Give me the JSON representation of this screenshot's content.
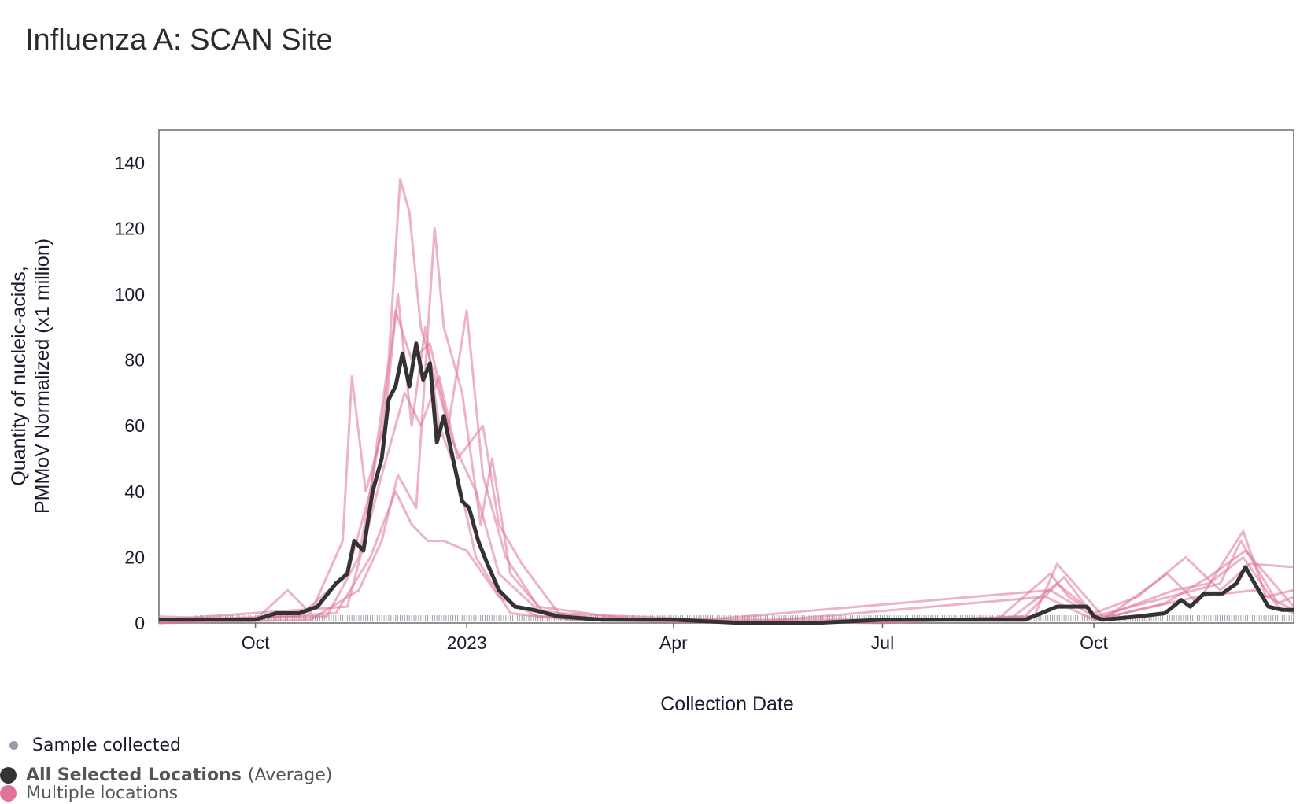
{
  "title": "Influenza A: SCAN Site",
  "colors": {
    "average": "#333333",
    "locations": "#e07399",
    "sample_dot": "#9b9bab",
    "frame": "#6b6b6b"
  },
  "legend": {
    "sample": "Sample collected",
    "average_name": "All Selected Locations",
    "average_suffix": "(Average)",
    "locations": "Multiple locations"
  },
  "chart_data": {
    "type": "line",
    "title": "Influenza A: SCAN Site",
    "xlabel": "Collection Date",
    "ylabel": [
      "Quantity of nucleic-acids,",
      "PMMoV Normalized (x1 million)"
    ],
    "ylim": [
      0,
      150
    ],
    "xlim": [
      "2022-08-20",
      "2023-12-27"
    ],
    "yticks": [
      0,
      20,
      40,
      60,
      80,
      100,
      120,
      140
    ],
    "xticks": [
      {
        "date": "2022-10-01",
        "label": "Oct"
      },
      {
        "date": "2023-01-01",
        "label": "2023"
      },
      {
        "date": "2023-04-01",
        "label": "Apr"
      },
      {
        "date": "2023-07-01",
        "label": "Jul"
      },
      {
        "date": "2023-10-01",
        "label": "Oct"
      }
    ],
    "grid": false,
    "legend_position": "bottom-left",
    "samples": "daily from 2022-08-20 to 2023-12-27",
    "series": [
      {
        "name": "All Selected Locations (Average)",
        "role": "average",
        "points": [
          [
            "2022-08-20",
            1
          ],
          [
            "2022-09-01",
            1
          ],
          [
            "2022-09-15",
            1
          ],
          [
            "2022-10-01",
            1
          ],
          [
            "2022-10-10",
            3
          ],
          [
            "2022-10-20",
            3
          ],
          [
            "2022-10-28",
            5
          ],
          [
            "2022-11-05",
            12
          ],
          [
            "2022-11-10",
            15
          ],
          [
            "2022-11-13",
            25
          ],
          [
            "2022-11-17",
            22
          ],
          [
            "2022-11-21",
            40
          ],
          [
            "2022-11-25",
            50
          ],
          [
            "2022-11-28",
            68
          ],
          [
            "2022-12-01",
            72
          ],
          [
            "2022-12-04",
            82
          ],
          [
            "2022-12-07",
            72
          ],
          [
            "2022-12-10",
            85
          ],
          [
            "2022-12-13",
            74
          ],
          [
            "2022-12-16",
            79
          ],
          [
            "2022-12-19",
            55
          ],
          [
            "2022-12-22",
            63
          ],
          [
            "2022-12-26",
            50
          ],
          [
            "2022-12-30",
            37
          ],
          [
            "2023-01-02",
            35
          ],
          [
            "2023-01-06",
            25
          ],
          [
            "2023-01-10",
            18
          ],
          [
            "2023-01-15",
            10
          ],
          [
            "2023-01-22",
            5
          ],
          [
            "2023-01-30",
            4
          ],
          [
            "2023-02-10",
            2
          ],
          [
            "2023-03-01",
            1
          ],
          [
            "2023-04-01",
            1
          ],
          [
            "2023-05-01",
            0
          ],
          [
            "2023-06-01",
            0
          ],
          [
            "2023-07-01",
            1
          ],
          [
            "2023-08-01",
            1
          ],
          [
            "2023-09-01",
            1
          ],
          [
            "2023-09-08",
            3
          ],
          [
            "2023-09-15",
            5
          ],
          [
            "2023-09-22",
            5
          ],
          [
            "2023-09-28",
            5
          ],
          [
            "2023-10-01",
            2
          ],
          [
            "2023-10-05",
            1
          ],
          [
            "2023-10-20",
            2
          ],
          [
            "2023-11-01",
            3
          ],
          [
            "2023-11-08",
            7
          ],
          [
            "2023-11-12",
            5
          ],
          [
            "2023-11-18",
            9
          ],
          [
            "2023-11-26",
            9
          ],
          [
            "2023-12-02",
            12
          ],
          [
            "2023-12-06",
            17
          ],
          [
            "2023-12-10",
            12
          ],
          [
            "2023-12-16",
            5
          ],
          [
            "2023-12-22",
            4
          ],
          [
            "2023-12-27",
            4
          ]
        ]
      },
      {
        "name": "Multiple locations",
        "role": "location",
        "points": [
          [
            "2022-08-20",
            2
          ],
          [
            "2022-10-01",
            1
          ],
          [
            "2022-10-15",
            10
          ],
          [
            "2022-10-25",
            3
          ],
          [
            "2022-11-08",
            25
          ],
          [
            "2022-11-12",
            75
          ],
          [
            "2022-11-18",
            40
          ],
          [
            "2022-11-26",
            60
          ],
          [
            "2022-12-02",
            100
          ],
          [
            "2022-12-08",
            60
          ],
          [
            "2022-12-14",
            90
          ],
          [
            "2022-12-20",
            60
          ],
          [
            "2022-12-28",
            45
          ],
          [
            "2023-01-05",
            20
          ],
          [
            "2023-01-20",
            3
          ],
          [
            "2023-02-15",
            1
          ],
          [
            "2023-05-01",
            0
          ],
          [
            "2023-08-20",
            1
          ],
          [
            "2023-09-12",
            15
          ],
          [
            "2023-09-20",
            8
          ],
          [
            "2023-10-05",
            1
          ],
          [
            "2023-11-02",
            15
          ],
          [
            "2023-11-15",
            6
          ],
          [
            "2023-12-05",
            28
          ],
          [
            "2023-12-15",
            8
          ],
          [
            "2023-12-27",
            10
          ]
        ]
      },
      {
        "name": "Multiple locations",
        "role": "location",
        "points": [
          [
            "2022-08-20",
            1
          ],
          [
            "2022-10-20",
            2
          ],
          [
            "2022-11-10",
            15
          ],
          [
            "2022-11-20",
            40
          ],
          [
            "2022-11-28",
            80
          ],
          [
            "2022-12-03",
            135
          ],
          [
            "2022-12-07",
            125
          ],
          [
            "2022-12-12",
            90
          ],
          [
            "2022-12-20",
            70
          ],
          [
            "2022-12-26",
            55
          ],
          [
            "2023-01-05",
            40
          ],
          [
            "2023-01-15",
            15
          ],
          [
            "2023-02-01",
            4
          ],
          [
            "2023-03-01",
            1
          ],
          [
            "2023-06-01",
            0
          ],
          [
            "2023-09-05",
            2
          ],
          [
            "2023-09-15",
            18
          ],
          [
            "2023-09-25",
            10
          ],
          [
            "2023-10-05",
            2
          ],
          [
            "2023-11-05",
            10
          ],
          [
            "2023-11-20",
            12
          ],
          [
            "2023-12-05",
            20
          ],
          [
            "2023-12-20",
            5
          ],
          [
            "2023-12-27",
            3
          ]
        ]
      },
      {
        "name": "Multiple locations",
        "role": "location",
        "points": [
          [
            "2022-08-20",
            0
          ],
          [
            "2022-10-25",
            1
          ],
          [
            "2022-11-15",
            10
          ],
          [
            "2022-11-25",
            25
          ],
          [
            "2022-12-02",
            45
          ],
          [
            "2022-12-10",
            35
          ],
          [
            "2022-12-18",
            120
          ],
          [
            "2022-12-22",
            90
          ],
          [
            "2022-12-30",
            70
          ],
          [
            "2023-01-07",
            30
          ],
          [
            "2023-01-12",
            50
          ],
          [
            "2023-01-20",
            15
          ],
          [
            "2023-02-05",
            2
          ],
          [
            "2023-04-01",
            1
          ],
          [
            "2023-08-25",
            1
          ],
          [
            "2023-09-15",
            12
          ],
          [
            "2023-10-01",
            3
          ],
          [
            "2023-10-20",
            8
          ],
          [
            "2023-11-10",
            20
          ],
          [
            "2023-11-25",
            10
          ],
          [
            "2023-12-08",
            18
          ],
          [
            "2023-12-27",
            17
          ]
        ]
      },
      {
        "name": "Multiple locations",
        "role": "location",
        "points": [
          [
            "2022-08-20",
            1
          ],
          [
            "2022-11-01",
            2
          ],
          [
            "2022-11-15",
            20
          ],
          [
            "2022-11-25",
            60
          ],
          [
            "2022-12-01",
            95
          ],
          [
            "2022-12-08",
            80
          ],
          [
            "2022-12-16",
            85
          ],
          [
            "2022-12-24",
            60
          ],
          [
            "2023-01-01",
            95
          ],
          [
            "2023-01-08",
            45
          ],
          [
            "2023-01-18",
            20
          ],
          [
            "2023-02-01",
            5
          ],
          [
            "2023-03-15",
            1
          ],
          [
            "2023-07-01",
            0
          ],
          [
            "2023-09-01",
            2
          ],
          [
            "2023-09-18",
            14
          ],
          [
            "2023-10-02",
            1
          ],
          [
            "2023-11-01",
            6
          ],
          [
            "2023-11-20",
            14
          ],
          [
            "2023-12-06",
            22
          ],
          [
            "2023-12-27",
            5
          ]
        ]
      },
      {
        "name": "Multiple locations",
        "role": "location",
        "points": [
          [
            "2022-08-20",
            0
          ],
          [
            "2022-11-05",
            3
          ],
          [
            "2022-11-20",
            20
          ],
          [
            "2022-12-01",
            40
          ],
          [
            "2022-12-08",
            30
          ],
          [
            "2022-12-15",
            25
          ],
          [
            "2022-12-22",
            25
          ],
          [
            "2023-01-01",
            22
          ],
          [
            "2023-01-15",
            8
          ],
          [
            "2023-02-01",
            2
          ],
          [
            "2023-05-01",
            0
          ],
          [
            "2023-09-10",
            8
          ],
          [
            "2023-10-01",
            1
          ],
          [
            "2023-11-15",
            8
          ],
          [
            "2023-12-10",
            10
          ],
          [
            "2023-12-27",
            4
          ]
        ]
      },
      {
        "name": "Multiple locations",
        "role": "location",
        "points": [
          [
            "2022-08-20",
            1
          ],
          [
            "2022-11-10",
            5
          ],
          [
            "2022-11-25",
            45
          ],
          [
            "2022-12-05",
            70
          ],
          [
            "2022-12-12",
            60
          ],
          [
            "2022-12-20",
            75
          ],
          [
            "2022-12-28",
            50
          ],
          [
            "2023-01-08",
            60
          ],
          [
            "2023-01-15",
            30
          ],
          [
            "2023-01-25",
            18
          ],
          [
            "2023-02-10",
            3
          ],
          [
            "2023-04-15",
            1
          ],
          [
            "2023-09-12",
            10
          ],
          [
            "2023-10-01",
            2
          ],
          [
            "2023-11-25",
            12
          ],
          [
            "2023-12-04",
            25
          ],
          [
            "2023-12-20",
            6
          ],
          [
            "2023-12-27",
            8
          ]
        ]
      }
    ]
  }
}
